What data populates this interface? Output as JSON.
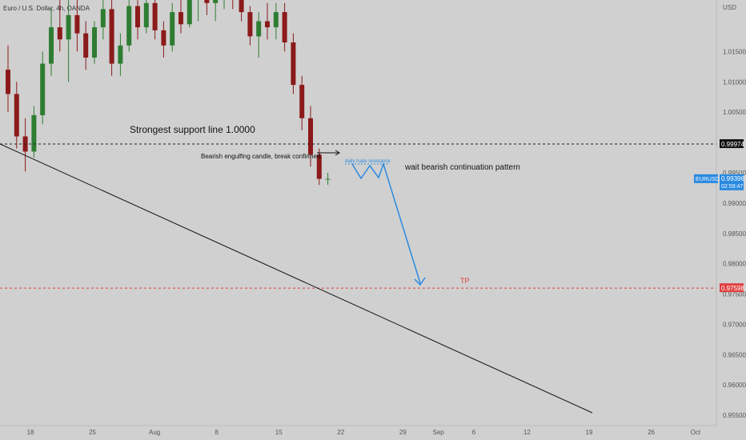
{
  "chart_data": {
    "type": "candlestick",
    "symbol_title": "Euro / U.S. Dollar, 4h, OANDA",
    "currency": "USD",
    "price_labels": [
      "1.01500",
      "1.01000",
      "1.00500",
      "0.99500",
      "0.99000",
      "0.98500",
      "0.98000",
      "0.97500",
      "0.97000",
      "0.96500",
      "0.96000",
      "0.95500"
    ],
    "y_range": [
      0.9533,
      1.0235
    ],
    "date_labels": [
      {
        "text": "18",
        "x_index": 0
      },
      {
        "text": "25",
        "x_index": 7
      },
      {
        "text": "Aug",
        "x_index": 14
      },
      {
        "text": "8",
        "x_index": 21
      },
      {
        "text": "15",
        "x_index": 28
      },
      {
        "text": "22",
        "x_index": 35
      },
      {
        "text": "29",
        "x_index": 42
      },
      {
        "text": "Sep",
        "x_index": 46
      },
      {
        "text": "6",
        "x_index": 50
      },
      {
        "text": "12",
        "x_index": 56
      },
      {
        "text": "19",
        "x_index": 63
      },
      {
        "text": "26",
        "x_index": 70
      },
      {
        "text": "Oct",
        "x_index": 75
      }
    ],
    "support_level": 0.99974,
    "support_label": "0.99974",
    "tp_level": 0.97598,
    "tp_label": "0.97598",
    "current_price": 0.99396,
    "current_price_label": "0.99396",
    "symbol_badge": "EURUSD",
    "countdown": "02:59:47",
    "candles": [
      [
        1.012,
        1.016,
        1.005,
        1.008
      ],
      [
        1.008,
        1.01,
        0.999,
        1.001
      ],
      [
        1.001,
        1.004,
        0.9952,
        0.9985
      ],
      [
        0.9985,
        1.006,
        0.9975,
        1.0045
      ],
      [
        1.0045,
        1.015,
        1.003,
        1.013
      ],
      [
        1.013,
        1.022,
        1.011,
        1.019
      ],
      [
        1.019,
        1.024,
        1.015,
        1.017
      ],
      [
        1.017,
        1.0235,
        1.01,
        1.021
      ],
      [
        1.021,
        1.024,
        1.015,
        1.018
      ],
      [
        1.018,
        1.02,
        1.012,
        1.014
      ],
      [
        1.014,
        1.02,
        1.013,
        1.019
      ],
      [
        1.019,
        1.024,
        1.017,
        1.022
      ],
      [
        1.022,
        1.024,
        1.011,
        1.013
      ],
      [
        1.013,
        1.018,
        1.011,
        1.016
      ],
      [
        1.016,
        1.024,
        1.015,
        1.0225
      ],
      [
        1.0225,
        1.0245,
        1.017,
        1.019
      ],
      [
        1.019,
        1.0245,
        1.018,
        1.023
      ],
      [
        1.023,
        1.0245,
        1.017,
        1.0185
      ],
      [
        1.0185,
        1.02,
        1.014,
        1.016
      ],
      [
        1.016,
        1.023,
        1.015,
        1.0215
      ],
      [
        1.0215,
        1.0245,
        1.018,
        1.0195
      ],
      [
        1.0195,
        1.0245,
        1.019,
        1.0235
      ],
      [
        1.0235,
        1.025,
        1.02,
        1.024
      ],
      [
        1.024,
        1.025,
        1.021,
        1.023
      ],
      [
        1.023,
        1.025,
        1.02,
        1.024
      ],
      [
        1.024,
        1.025,
        1.022,
        1.0245
      ],
      [
        1.0245,
        1.025,
        1.022,
        1.024
      ],
      [
        1.024,
        1.025,
        1.02,
        1.0215
      ],
      [
        1.0215,
        1.0225,
        1.016,
        1.0175
      ],
      [
        1.0175,
        1.0215,
        1.014,
        1.02
      ],
      [
        1.02,
        1.023,
        1.017,
        1.019
      ],
      [
        1.019,
        1.023,
        1.017,
        1.0215
      ],
      [
        1.0215,
        1.023,
        1.015,
        1.0165
      ],
      [
        1.0165,
        1.018,
        1.008,
        1.0095
      ],
      [
        1.0095,
        1.011,
        1.002,
        1.004
      ],
      [
        1.004,
        1.006,
        0.996,
        0.998
      ],
      [
        0.998,
        0.999,
        0.993,
        0.994
      ],
      [
        0.994,
        0.995,
        0.993,
        0.994
      ]
    ]
  },
  "annotations": {
    "support_text": "Strongest support line 1.0000",
    "engulfing_text": "Bearish engulfing candle, break confirmed.",
    "resistance_text": "daily trade resistance",
    "continuation_text": "wait bearish continuation pattern",
    "tp_text": "TP"
  },
  "colors": {
    "background": "#d0d0d0",
    "candle_up": "#2e7d32",
    "candle_down": "#8b1a1a",
    "projection": "#2a8ae0",
    "tp": "#e04040",
    "support_line": "#222222"
  }
}
